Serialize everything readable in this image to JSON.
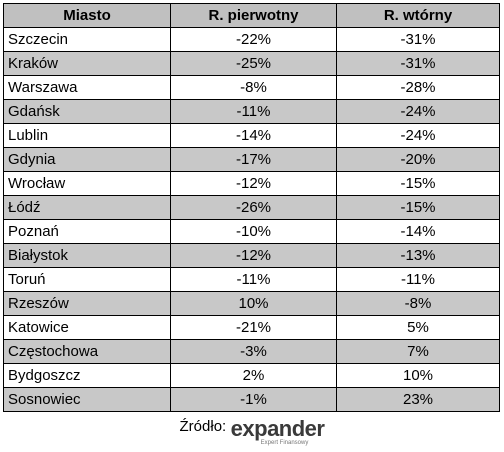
{
  "table": {
    "header": [
      "Miasto",
      "R. pierwotny",
      "R. wtórny"
    ],
    "rows": [
      [
        "Szczecin",
        "-22%",
        "-31%"
      ],
      [
        "Kraków",
        "-25%",
        "-31%"
      ],
      [
        "Warszawa",
        "-8%",
        "-28%"
      ],
      [
        "Gdańsk",
        "-11%",
        "-24%"
      ],
      [
        "Lublin",
        "-14%",
        "-24%"
      ],
      [
        "Gdynia",
        "-17%",
        "-20%"
      ],
      [
        "Wrocław",
        "-12%",
        "-15%"
      ],
      [
        "Łódź",
        "-26%",
        "-15%"
      ],
      [
        "Poznań",
        "-10%",
        "-14%"
      ],
      [
        "Białystok",
        "-12%",
        "-13%"
      ],
      [
        "Toruń",
        "-11%",
        "-11%"
      ],
      [
        "Rzeszów",
        "10%",
        "-8%"
      ],
      [
        "Katowice",
        "-21%",
        "5%"
      ],
      [
        "Częstochowa",
        "-3%",
        "7%"
      ],
      [
        "Bydgoszcz",
        "2%",
        "10%"
      ],
      [
        "Sosnowiec",
        "-1%",
        "23%"
      ]
    ]
  },
  "footer": {
    "source_label": "Źródło:",
    "logo": "expander",
    "logo_tagline": "Expert Finansowy"
  }
}
